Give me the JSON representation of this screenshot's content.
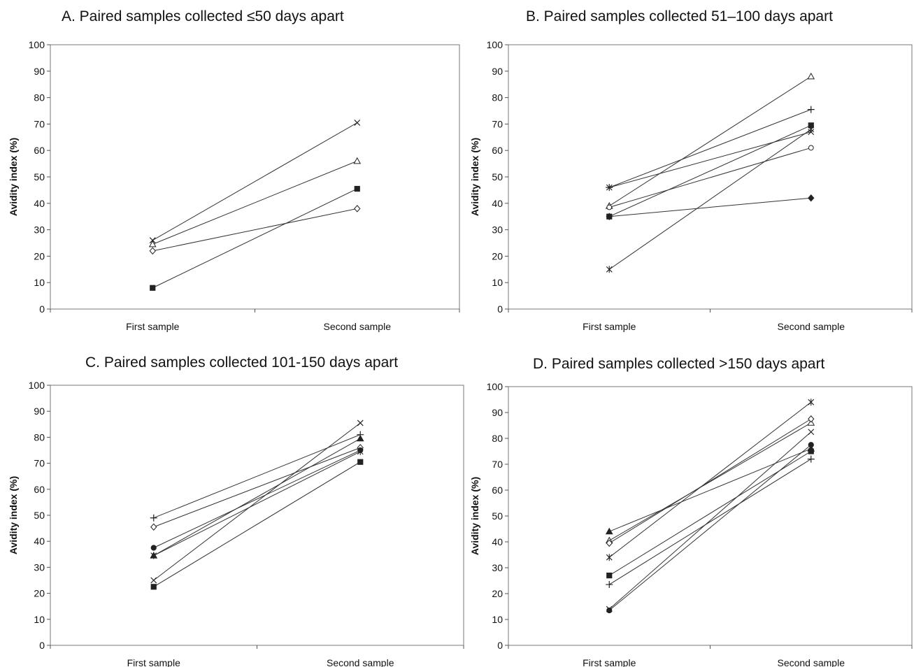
{
  "chart_data": [
    {
      "type": "line",
      "title": "A. Paired samples collected ≤50 days apart",
      "ylabel": "Avidity index (%)",
      "xlabel": "",
      "categories": [
        "First sample",
        "Second sample"
      ],
      "ylim": [
        0,
        100
      ],
      "yticks": [
        0,
        10,
        20,
        30,
        40,
        50,
        60,
        70,
        80,
        90,
        100
      ],
      "grid": false,
      "series": [
        {
          "marker": "x",
          "values": [
            26,
            70.5
          ]
        },
        {
          "marker": "triangle-open",
          "values": [
            24.5,
            56
          ]
        },
        {
          "marker": "diamond-open",
          "values": [
            22,
            38
          ]
        },
        {
          "marker": "square",
          "values": [
            8,
            45.5
          ]
        }
      ]
    },
    {
      "type": "line",
      "title": "B. Paired samples collected 51–100 days apart",
      "ylabel": "Avidity index (%)",
      "xlabel": "",
      "categories": [
        "First sample",
        "Second sample"
      ],
      "ylim": [
        0,
        100
      ],
      "yticks": [
        0,
        10,
        20,
        30,
        40,
        50,
        60,
        70,
        80,
        90,
        100
      ],
      "grid": false,
      "series": [
        {
          "marker": "x",
          "values": [
            46,
            67
          ]
        },
        {
          "marker": "plus",
          "values": [
            46,
            75.5
          ]
        },
        {
          "marker": "triangle-open",
          "values": [
            39,
            88
          ]
        },
        {
          "marker": "circle-open",
          "values": [
            38.5,
            61
          ]
        },
        {
          "marker": "square",
          "values": [
            35,
            69.5
          ]
        },
        {
          "marker": "diamond",
          "values": [
            35,
            42
          ]
        },
        {
          "marker": "asterisk",
          "values": [
            15,
            68
          ]
        }
      ]
    },
    {
      "type": "line",
      "title": "C. Paired samples collected 101-150 days apart",
      "ylabel": "Avidity index (%)",
      "xlabel": "",
      "categories": [
        "First sample",
        "Second sample"
      ],
      "ylim": [
        0,
        100
      ],
      "yticks": [
        0,
        10,
        20,
        30,
        40,
        50,
        60,
        70,
        80,
        90,
        100
      ],
      "grid": false,
      "series": [
        {
          "marker": "plus",
          "values": [
            49,
            81
          ]
        },
        {
          "marker": "diamond-open",
          "values": [
            45.5,
            76
          ]
        },
        {
          "marker": "circle",
          "values": [
            37.5,
            75
          ]
        },
        {
          "marker": "triangle",
          "values": [
            34.5,
            79.5
          ]
        },
        {
          "marker": "asterisk",
          "values": [
            34.5,
            74.5
          ]
        },
        {
          "marker": "x",
          "values": [
            25,
            85.5
          ]
        },
        {
          "marker": "square",
          "values": [
            22.5,
            70.5
          ]
        }
      ]
    },
    {
      "type": "line",
      "title": "D. Paired samples collected >150 days apart",
      "ylabel": "Avidity index (%)",
      "xlabel": "",
      "categories": [
        "First sample",
        "Second sample"
      ],
      "ylim": [
        0,
        100
      ],
      "yticks": [
        0,
        10,
        20,
        30,
        40,
        50,
        60,
        70,
        80,
        90,
        100
      ],
      "grid": false,
      "series": [
        {
          "marker": "triangle",
          "values": [
            44,
            76
          ]
        },
        {
          "marker": "triangle-open",
          "values": [
            40.5,
            86
          ]
        },
        {
          "marker": "diamond-open",
          "values": [
            39.5,
            87.5
          ]
        },
        {
          "marker": "asterisk",
          "values": [
            34,
            94
          ]
        },
        {
          "marker": "square",
          "values": [
            27,
            75
          ]
        },
        {
          "marker": "plus",
          "values": [
            23.5,
            72
          ]
        },
        {
          "marker": "x",
          "values": [
            14,
            82.5
          ]
        },
        {
          "marker": "circle",
          "values": [
            13.5,
            77.5
          ]
        }
      ]
    }
  ]
}
